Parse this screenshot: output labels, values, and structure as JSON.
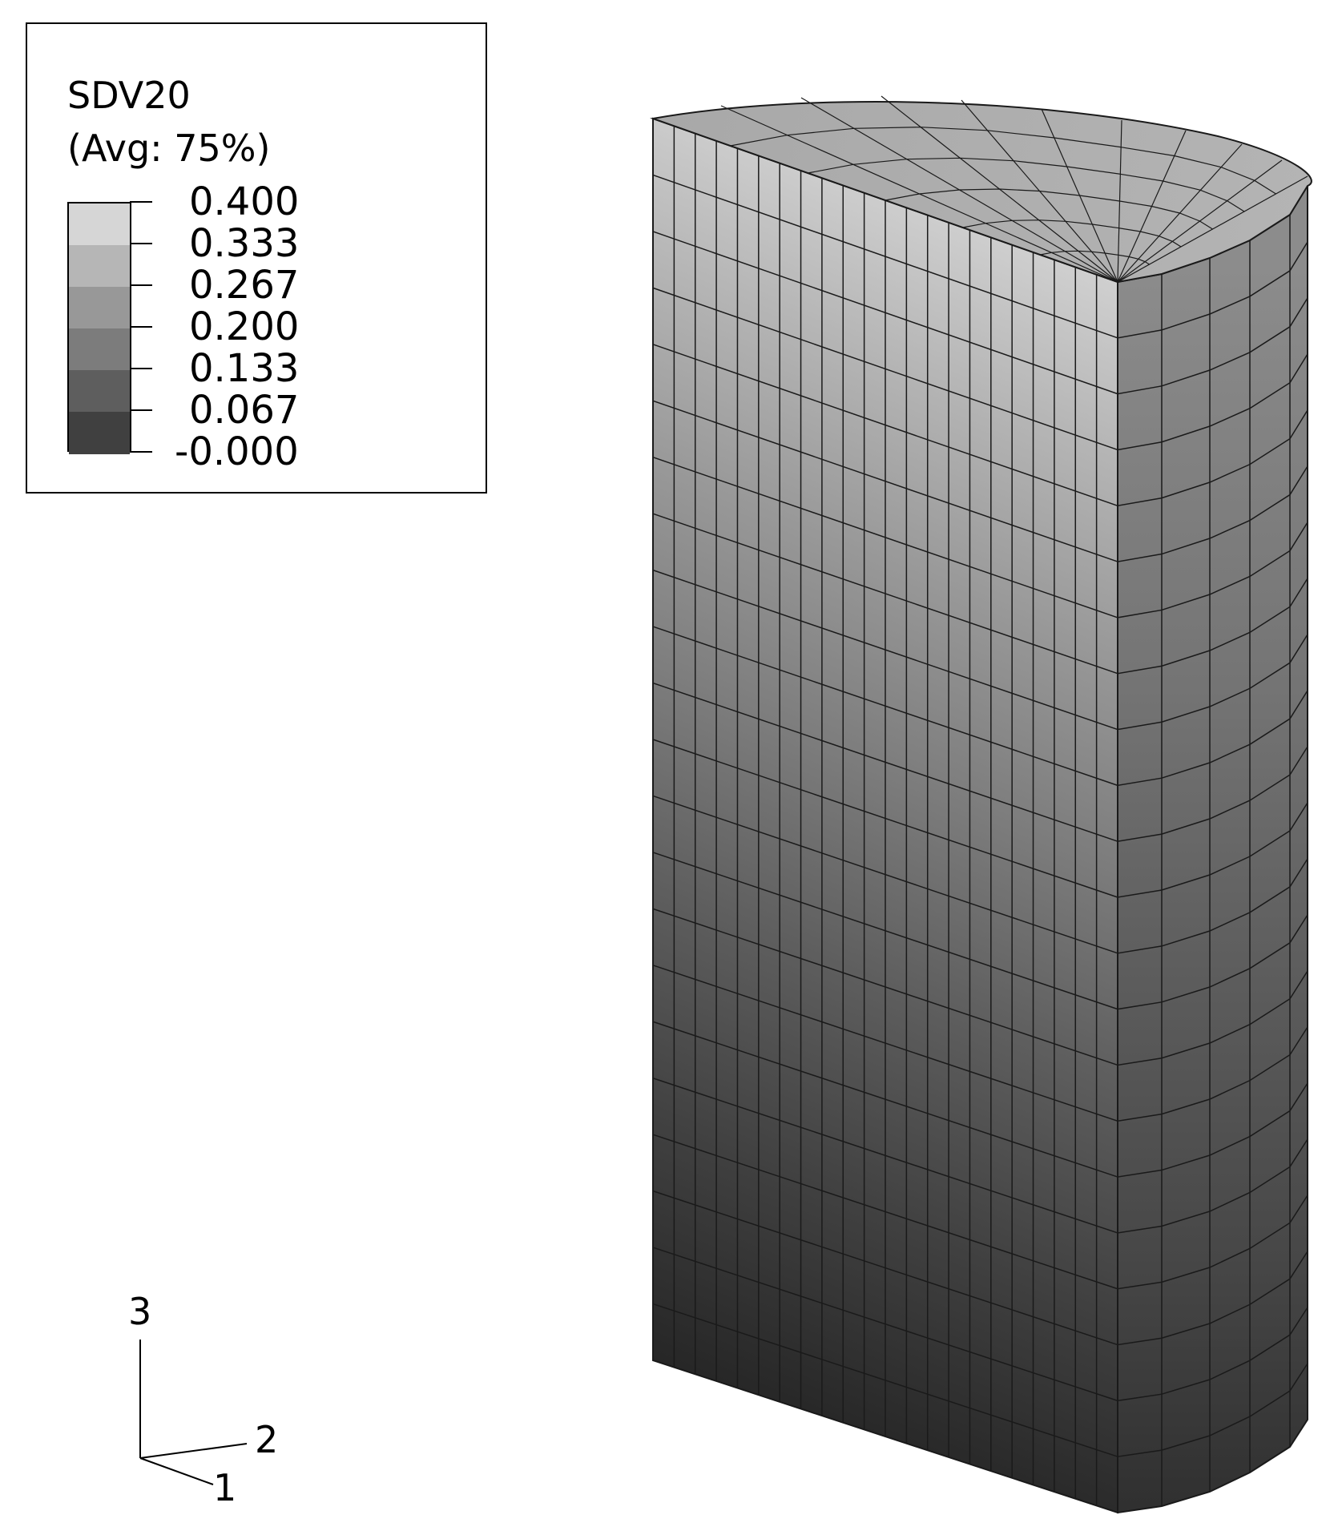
{
  "legend": {
    "title": "SDV20",
    "subtitle": "(Avg: 75%)",
    "levels": [
      "0.400",
      "0.333",
      "0.267",
      "0.200",
      "0.133",
      "0.067",
      "-0.000"
    ],
    "band_colors": [
      "#d6d6d6",
      "#b6b6b6",
      "#989898",
      "#7c7c7c",
      "#5e5e5e",
      "#404040",
      "#262626"
    ]
  },
  "triad": {
    "axis_3": "3",
    "axis_2": "2",
    "axis_1": "1"
  },
  "model": {
    "shape": "half-cylinder finite element mesh",
    "edge_color": "#1a1a1a"
  }
}
